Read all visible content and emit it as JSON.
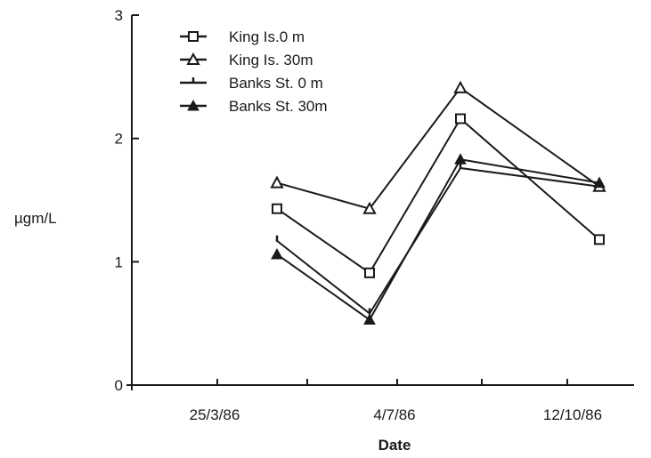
{
  "chart_data": {
    "type": "line",
    "title": "",
    "xlabel": "Date",
    "ylabel": "µgm/L",
    "ylim": [
      0,
      3
    ],
    "yticks": [
      0,
      1,
      2,
      3
    ],
    "xticks": [
      "25/3/86",
      "4/7/86",
      "12/10/86"
    ],
    "grid": false,
    "legend_position": "top-left",
    "series": [
      {
        "name": "King Is.0 m",
        "marker": "square-open",
        "points": [
          {
            "x": "29/4/86",
            "y": 1.43
          },
          {
            "x": "20/6/86",
            "y": 0.91
          },
          {
            "x": "10/8/86",
            "y": 2.16
          },
          {
            "x": "27/10/86",
            "y": 1.18
          }
        ]
      },
      {
        "name": "King Is. 30m",
        "marker": "triangle-open",
        "points": [
          {
            "x": "29/4/86",
            "y": 1.64
          },
          {
            "x": "20/6/86",
            "y": 1.43
          },
          {
            "x": "10/8/86",
            "y": 2.41
          },
          {
            "x": "27/10/86",
            "y": 1.61
          }
        ]
      },
      {
        "name": "Banks St. 0 m",
        "marker": "tick",
        "points": [
          {
            "x": "29/4/86",
            "y": 1.17
          },
          {
            "x": "20/6/86",
            "y": 0.58
          },
          {
            "x": "10/8/86",
            "y": 1.76
          },
          {
            "x": "27/10/86",
            "y": 1.61
          }
        ]
      },
      {
        "name": "Banks St. 30m",
        "marker": "triangle-filled",
        "points": [
          {
            "x": "29/4/86",
            "y": 1.06
          },
          {
            "x": "20/6/86",
            "y": 0.53
          },
          {
            "x": "10/8/86",
            "y": 1.83
          },
          {
            "x": "27/10/86",
            "y": 1.64
          }
        ]
      }
    ]
  }
}
